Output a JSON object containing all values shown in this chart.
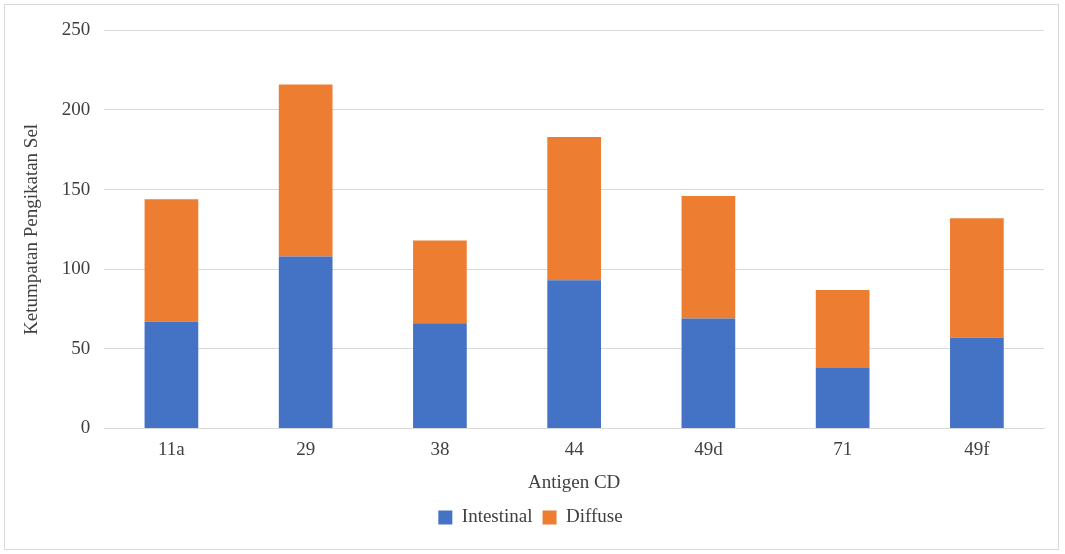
{
  "chart_data": {
    "type": "bar",
    "xlabel": "Antigen CD",
    "ylabel": "Ketumpatan Pengikatan Sel",
    "categories": [
      "11a",
      "29",
      "38",
      "44",
      "49d",
      "71",
      "49f"
    ],
    "series": [
      {
        "name": "Intestinal",
        "color": "#4472c4",
        "values": [
          67,
          108,
          66,
          93,
          69,
          38,
          57
        ]
      },
      {
        "name": "Diffuse",
        "color": "#ed7d31",
        "values": [
          77,
          108,
          52,
          90,
          77,
          49,
          75
        ]
      }
    ],
    "stacked": true,
    "ylim": [
      0,
      250
    ],
    "yticks": [
      0,
      50,
      100,
      150,
      200,
      250
    ],
    "grid": "y",
    "legend": "bottom"
  }
}
